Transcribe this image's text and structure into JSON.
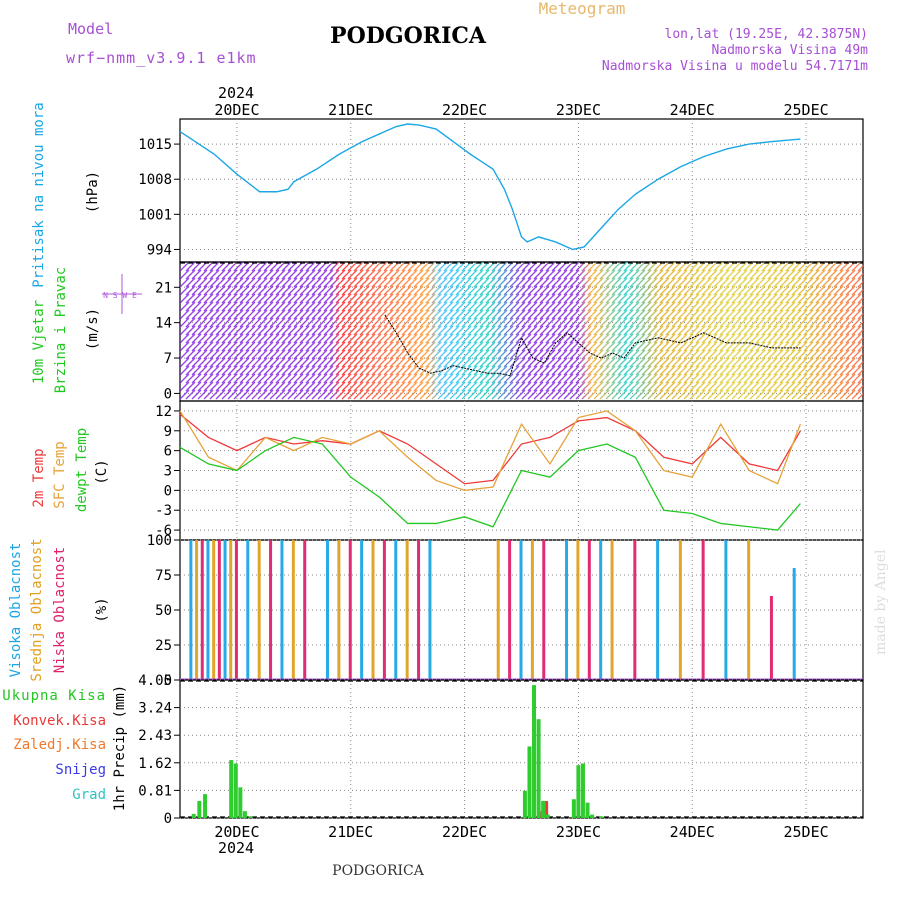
{
  "header": {
    "model_label": "Model",
    "model_name": "wrf−nmm_v3.9.1 e1km",
    "title": "PODGORICA",
    "subtitle": "Meteogram",
    "coords": "lon,lat (19.25E, 42.3875N)",
    "elevation": "Nadmorska Visina 49m",
    "model_elevation": "Nadmorska Visina u modelu 54.7171m",
    "footer": "PODGORICA",
    "watermark": "made by Angel"
  },
  "colors": {
    "pressure": "#1aa7e6",
    "t2m": "#ee3a3a",
    "sfc": "#e6a23a",
    "dewpt": "#22c722",
    "precip_total": "#2ecc2e",
    "precip_conv": "#e83a3a",
    "precip_frozen": "#f07a2a",
    "snow": "#3a3ae8",
    "grad": "#2ec4c4",
    "cloud_high": "#1aa7e6",
    "cloud_mid": "#e0a020",
    "cloud_low": "#e0206a"
  },
  "chart_data": [
    {
      "type": "line",
      "panel": "pressure",
      "ylabel_1": "Pritisak na nivou mora",
      "ylabel_unit": "(hPa)",
      "yticks": [
        994,
        1001,
        1008,
        1015
      ],
      "ylim": [
        991.5,
        1020
      ],
      "x": [
        0,
        0.1,
        0.3,
        0.5,
        0.7,
        0.85,
        0.95,
        1.0,
        1.2,
        1.4,
        1.6,
        1.8,
        1.9,
        2.0,
        2.1,
        2.25,
        2.4,
        2.55,
        2.65,
        2.75,
        2.85,
        2.92,
        3.0,
        3.05,
        3.15,
        3.3,
        3.45,
        3.55,
        3.65,
        3.75,
        3.85,
        4.0,
        4.2,
        4.4,
        4.6,
        4.8,
        5.0,
        5.2,
        5.45
      ],
      "y": [
        1017.5,
        1016,
        1013,
        1009,
        1005.5,
        1005.5,
        1006,
        1007.5,
        1010,
        1013,
        1015.5,
        1017.5,
        1018.5,
        1019,
        1018.8,
        1018,
        1015.5,
        1013,
        1011.5,
        1010,
        1006,
        1002,
        996.5,
        995.5,
        996.5,
        995.5,
        994,
        994.5,
        997,
        999.5,
        1002,
        1005,
        1008,
        1010.5,
        1012.5,
        1014,
        1015,
        1015.5,
        1016
      ],
      "grid": "dotted"
    },
    {
      "type": "wind",
      "panel": "wind",
      "ylabel_1": "10m Vjetar",
      "ylabel_2": "Brzina i Pravac",
      "ylabel_unit": "(m/s)",
      "yticks": [
        0,
        7,
        14,
        21
      ],
      "ylim": [
        -1.5,
        26
      ],
      "compass": "N S W E",
      "x": [
        1.8,
        1.9,
        2.0,
        2.1,
        2.2,
        2.3,
        2.4,
        2.5,
        2.6,
        2.7,
        2.8,
        2.9,
        3.0,
        3.1,
        3.2,
        3.3,
        3.4,
        3.5,
        3.6,
        3.7,
        3.8,
        3.9,
        4.0,
        4.2,
        4.4,
        4.6,
        4.8,
        5.0,
        5.2,
        5.45
      ],
      "y": [
        15.5,
        12,
        8,
        5,
        4,
        4.5,
        5.5,
        5,
        4.5,
        4,
        4,
        3.5,
        11,
        7,
        6,
        10,
        12,
        10,
        8,
        7,
        8,
        7,
        10,
        11,
        10,
        12,
        10,
        10,
        9,
        9
      ]
    },
    {
      "type": "line",
      "panel": "temperature",
      "ylabel_1": "2m Temp",
      "ylabel_2": "SFC Temp",
      "ylabel_3": "dewpt Temp",
      "ylabel_unit": "(C)",
      "yticks": [
        -6,
        -3,
        0,
        3,
        6,
        9,
        12
      ],
      "ylim": [
        -7.5,
        13.5
      ],
      "x": [
        0,
        0.25,
        0.5,
        0.75,
        1.0,
        1.25,
        1.5,
        1.75,
        2.0,
        2.25,
        2.5,
        2.75,
        3.0,
        3.25,
        3.5,
        3.75,
        4.0,
        4.25,
        4.5,
        4.75,
        5.0,
        5.25,
        5.45
      ],
      "series": [
        {
          "name": "2m Temp",
          "values": [
            11.5,
            8,
            6,
            8,
            7,
            7.5,
            7,
            9,
            7,
            4,
            1,
            1.5,
            7,
            8,
            10.5,
            11,
            9,
            5,
            4,
            8,
            4,
            3,
            9
          ]
        },
        {
          "name": "SFC Temp",
          "values": [
            12,
            5,
            3,
            8,
            6,
            8,
            7,
            9,
            5,
            1.5,
            0,
            0.5,
            10,
            4,
            11,
            12,
            9,
            3,
            2,
            10,
            3,
            1,
            10
          ]
        },
        {
          "name": "dewpt Temp",
          "values": [
            6.5,
            4,
            3,
            6,
            8,
            7,
            2,
            -1,
            -5,
            -5,
            -4,
            -5.5,
            3,
            2,
            6,
            7,
            5,
            -3,
            -3.5,
            -5,
            -5.5,
            -6,
            -2
          ]
        }
      ]
    },
    {
      "type": "bar",
      "panel": "clouds",
      "ylabel_1": "Visoka Oblacnost",
      "ylabel_2": "Srednja Oblacnost",
      "ylabel_3": "Niska Oblacnost",
      "ylabel_unit": "(%)",
      "yticks": [
        0,
        25,
        50,
        75,
        100
      ],
      "ylim": [
        0,
        100
      ],
      "x": [
        0.1,
        0.15,
        0.2,
        0.25,
        0.3,
        0.35,
        0.4,
        0.45,
        0.5,
        0.6,
        0.7,
        0.8,
        0.9,
        1.0,
        1.1,
        1.3,
        1.4,
        1.5,
        1.6,
        1.7,
        1.8,
        1.9,
        2.0,
        2.1,
        2.2,
        2.8,
        2.9,
        3.0,
        3.1,
        3.2,
        3.4,
        3.5,
        3.6,
        3.7,
        3.8,
        4.0,
        4.2,
        4.4,
        4.6,
        4.8,
        5.0,
        5.2,
        5.4
      ],
      "values": [
        100,
        100,
        100,
        100,
        100,
        100,
        100,
        100,
        100,
        100,
        100,
        100,
        100,
        100,
        100,
        100,
        100,
        100,
        100,
        100,
        100,
        100,
        100,
        100,
        100,
        100,
        100,
        100,
        100,
        100,
        100,
        100,
        100,
        100,
        100,
        100,
        100,
        100,
        100,
        100,
        100,
        60,
        80
      ]
    },
    {
      "type": "bar",
      "panel": "precip",
      "legend": [
        "Ukupna Kisa",
        "Konvek.Kisa",
        "Zaledj.Kisa",
        "Snijeg",
        "Grad"
      ],
      "ylabel_unit": "1hr Precip (mm)",
      "yticks": [
        0,
        0.81,
        1.62,
        2.43,
        3.24,
        4.05
      ],
      "ylim": [
        0,
        4.05
      ],
      "x": [
        0.12,
        0.17,
        0.22,
        0.45,
        0.49,
        0.53,
        0.57,
        0.62,
        3.03,
        3.07,
        3.11,
        3.15,
        3.19,
        3.23,
        3.46,
        3.5,
        3.54,
        3.58,
        3.62,
        3.7
      ],
      "series": [
        {
          "name": "Ukupna Kisa",
          "values": [
            0.12,
            0.5,
            0.7,
            1.7,
            1.6,
            0.9,
            0.2,
            0.05,
            0.8,
            2.1,
            3.9,
            2.9,
            0.5,
            0.1,
            0.55,
            1.55,
            1.6,
            0.45,
            0.1,
            0.05
          ]
        },
        {
          "name": "Konvek.Kisa",
          "values": [
            0,
            0,
            0,
            0,
            0,
            0,
            0,
            0,
            0,
            0,
            0,
            0.2,
            0.5,
            0,
            0,
            0,
            0,
            0,
            0,
            0
          ]
        }
      ]
    }
  ],
  "xaxis": {
    "ticks": [
      {
        "label": "20DEC",
        "x": 0.5
      },
      {
        "label": "21DEC",
        "x": 1.5
      },
      {
        "label": "22DEC",
        "x": 2.5
      },
      {
        "label": "23DEC",
        "x": 3.5
      },
      {
        "label": "24DEC",
        "x": 4.5
      },
      {
        "label": "25DEC",
        "x": 5.5
      }
    ],
    "year": "2024",
    "xlim": [
      0,
      6
    ]
  }
}
